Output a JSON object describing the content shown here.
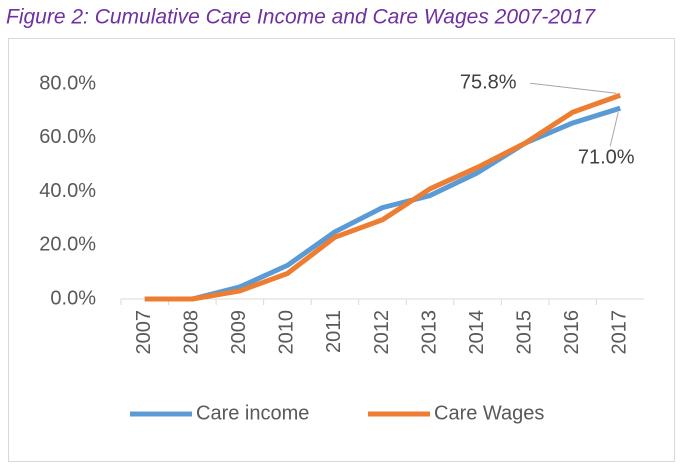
{
  "chart_data": {
    "type": "line",
    "title": "Figure 2: Cumulative Care Income and Care Wages 2007-2017",
    "categories": [
      "2007",
      "2008",
      "2009",
      "2010",
      "2011",
      "2012",
      "2013",
      "2014",
      "2015",
      "2016",
      "2017"
    ],
    "series": [
      {
        "name": "Care income",
        "color": "#5b9bd5",
        "values": [
          0,
          0,
          4.5,
          12.5,
          25,
          34,
          38.5,
          47,
          58,
          65.5,
          71.0
        ],
        "value_labels": [
          null,
          null,
          null,
          null,
          null,
          null,
          null,
          null,
          null,
          null,
          "71.0%"
        ]
      },
      {
        "name": "Care Wages",
        "color": "#ed7d31",
        "values": [
          0,
          0,
          3,
          9.5,
          23,
          29.5,
          41,
          49,
          58,
          69.5,
          75.8
        ],
        "value_labels": [
          null,
          null,
          null,
          null,
          null,
          null,
          null,
          null,
          null,
          null,
          "75.8%"
        ]
      }
    ],
    "ylim": [
      0,
      80
    ],
    "yticks": [
      {
        "value": 0,
        "label": "0.0%"
      },
      {
        "value": 20,
        "label": "20.0%"
      },
      {
        "value": 40,
        "label": "40.0%"
      },
      {
        "value": 60,
        "label": "60.0%"
      },
      {
        "value": 80,
        "label": "80.0%"
      }
    ],
    "grid": false,
    "legend": "bottom"
  }
}
